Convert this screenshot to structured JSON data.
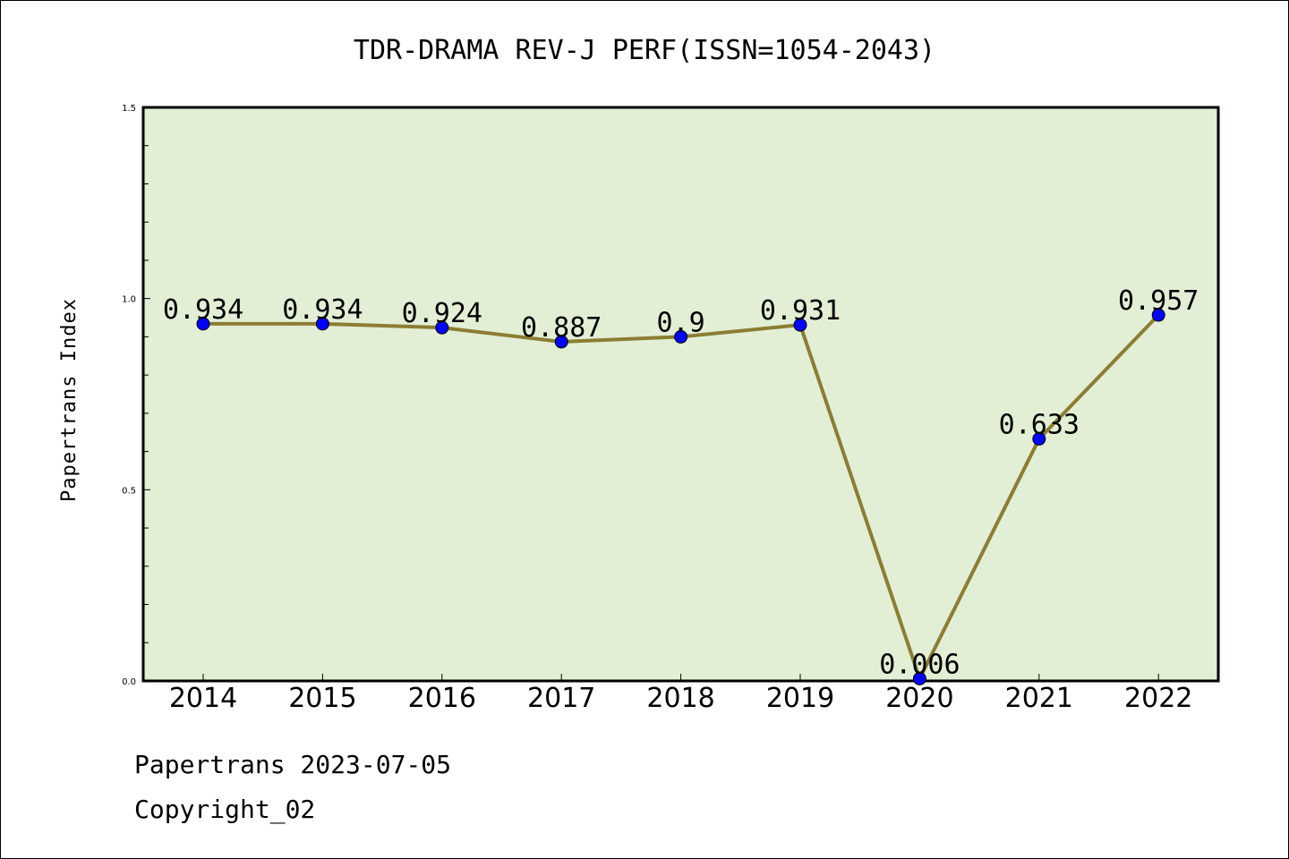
{
  "chart_data": {
    "type": "line",
    "title": "TDR-DRAMA REV-J PERF(ISSN=1054-2043)",
    "ylabel": "Papertrans Index",
    "xlabel": "",
    "categories": [
      "2014",
      "2015",
      "2016",
      "2017",
      "2018",
      "2019",
      "2020",
      "2021",
      "2022"
    ],
    "values": [
      0.934,
      0.934,
      0.924,
      0.887,
      0.9,
      0.931,
      0.006,
      0.633,
      0.957
    ],
    "value_labels": [
      "0.934",
      "0.934",
      "0.924",
      "0.887",
      "0.9",
      "0.931",
      "0.006",
      "0.633",
      "0.957"
    ],
    "ylim": [
      0.0,
      1.5
    ],
    "yticks": [
      "0.0",
      "0.5",
      "1.0",
      "1.5"
    ],
    "grid": false,
    "colors": {
      "plot_background": "#e2efd5",
      "line": "#8b7d32",
      "marker": "#0000ff"
    }
  },
  "footer": {
    "line1": "Papertrans 2023-07-05",
    "line2": "Copyright_02"
  }
}
